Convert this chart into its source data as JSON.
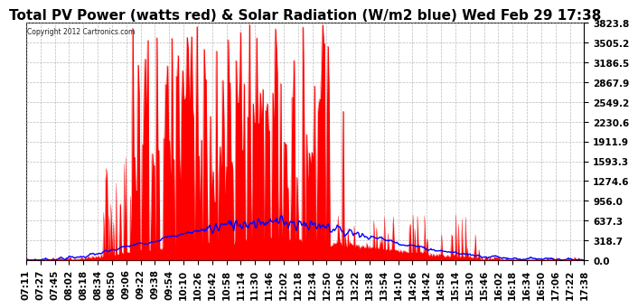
{
  "title": "Total PV Power (watts red) & Solar Radiation (W/m2 blue) Wed Feb 29 17:38",
  "copyright": "Copyright 2012 Cartronics.com",
  "ymax": 3823.8,
  "yticks": [
    0.0,
    318.7,
    637.3,
    956.0,
    1274.6,
    1593.3,
    1911.9,
    2230.6,
    2549.2,
    2867.9,
    3186.5,
    3505.2,
    3823.8
  ],
  "bg_color": "#ffffff",
  "grid_color": "#aaaaaa",
  "red_color": "#ff0000",
  "blue_color": "#0000ff",
  "title_fontsize": 11,
  "tick_fontsize": 7.5,
  "xtick_labels": [
    "07:11",
    "07:27",
    "07:45",
    "08:02",
    "08:18",
    "08:34",
    "08:50",
    "09:06",
    "09:22",
    "09:38",
    "09:54",
    "10:10",
    "10:26",
    "10:42",
    "10:58",
    "11:14",
    "11:30",
    "11:46",
    "12:02",
    "12:18",
    "12:34",
    "12:50",
    "13:06",
    "13:22",
    "13:38",
    "13:54",
    "14:10",
    "14:26",
    "14:42",
    "14:58",
    "15:14",
    "15:30",
    "15:46",
    "16:02",
    "16:18",
    "16:34",
    "16:50",
    "17:06",
    "17:22",
    "17:38"
  ]
}
